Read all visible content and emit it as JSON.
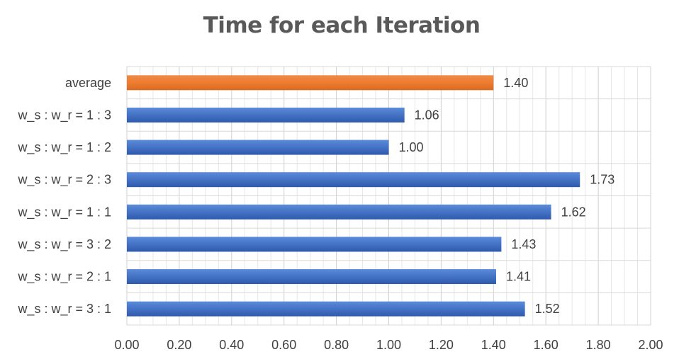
{
  "chart_data": {
    "type": "bar",
    "orientation": "horizontal",
    "title": "Time for each Iteration",
    "xlabel": "",
    "ylabel": "",
    "categories": [
      "average",
      "w_s : w_r = 1 : 3",
      "w_s : w_r = 1 : 2",
      "w_s : w_r = 2 : 3",
      "w_s : w_r = 1 : 1",
      "w_s : w_r = 3 : 2",
      "w_s : w_r = 2 : 1",
      "w_s : w_r = 3 : 1"
    ],
    "values": [
      1.4,
      1.06,
      1.0,
      1.73,
      1.62,
      1.43,
      1.41,
      1.52
    ],
    "value_labels": [
      "1.40",
      "1.06",
      "1.00",
      "1.73",
      "1.62",
      "1.43",
      "1.41",
      "1.52"
    ],
    "bar_colors": [
      "#ED7D31",
      "#4472C4",
      "#4472C4",
      "#4472C4",
      "#4472C4",
      "#4472C4",
      "#4472C4",
      "#4472C4"
    ],
    "xlim": [
      0,
      2
    ],
    "x_ticks": [
      "0.00",
      "0.20",
      "0.40",
      "0.60",
      "0.80",
      "1.00",
      "1.20",
      "1.40",
      "1.60",
      "1.80",
      "2.00"
    ],
    "grid": true,
    "legend": "none"
  }
}
